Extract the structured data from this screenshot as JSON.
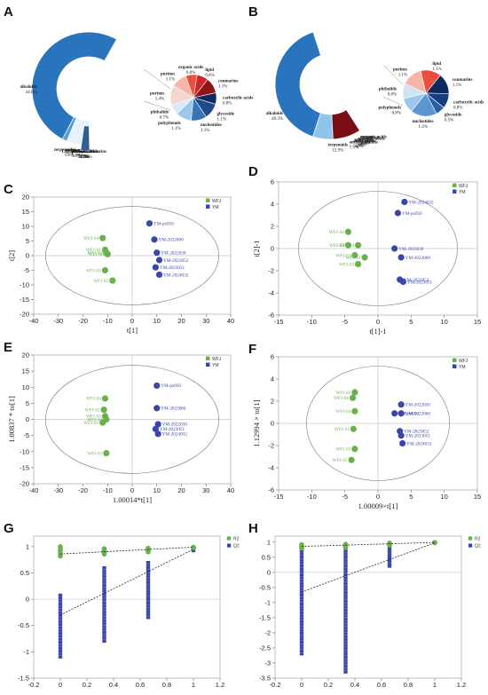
{
  "panels": {
    "A": "A",
    "B": "B",
    "C": "C",
    "D": "D",
    "E": "E",
    "F": "F",
    "G": "G",
    "H": "H"
  },
  "colors": {
    "wfj": "#6ab04c",
    "ym": "#3a47a8"
  },
  "chart_data": [
    {
      "panel": "A",
      "type": "pie",
      "outer_slices": [
        {
          "label": "alkaloids",
          "value": 44.0,
          "pct": "44.0%",
          "color": "#2a73bd"
        },
        {
          "label": "amino acids",
          "value": 5.3,
          "pct": "5.3%",
          "color": "#6aaedb"
        },
        {
          "label": "terpenoids",
          "value": 6.0,
          "pct": "6.0%",
          "color": "#5b9ccf"
        },
        {
          "label": "Lignans and coumarins",
          "value": 2.2,
          "pct": "2.2%",
          "color": "#4f8ec6"
        },
        {
          "label": "flavonoids",
          "value": 2.7,
          "pct": "2.7%",
          "color": "#1f5f9e"
        },
        {
          "label": "steroids",
          "value": 1.0,
          "pct": "1.0%",
          "color": "#0d3f74"
        },
        {
          "label": "phenolic acids",
          "value": 1.9,
          "pct": "1.9%",
          "color": "#79bde6"
        },
        {
          "label": "lipids",
          "value": 2.2,
          "pct": "2.2%",
          "color": "#a4d3f0"
        },
        {
          "label": "fatty acids",
          "value": 3.0,
          "pct": "3.0%",
          "color": "#c6e4f6"
        },
        {
          "label": "others",
          "value": 5.0,
          "pct": "5.0%",
          "color": "#e6f3fb"
        },
        {
          "label": "phenolic acids",
          "value": 1.9,
          "pct": "1.9%",
          "color": "#2d5f96"
        }
      ],
      "inner_slices": [
        {
          "label": "purines",
          "value": 1.1,
          "pct": "1.1%",
          "color": "#f7b4a7"
        },
        {
          "label": "organic acids",
          "value": 0.8,
          "pct": "0.8%",
          "color": "#e8503d"
        },
        {
          "label": "lipid",
          "value": 0.8,
          "pct": "0.8%",
          "color": "#c92a25"
        },
        {
          "label": "coumarins",
          "value": 1.1,
          "pct": "1.1%",
          "color": "#8f1519"
        },
        {
          "label": "carboxylic acids",
          "value": 0.8,
          "pct": "0.8%",
          "color": "#0e2a5c"
        },
        {
          "label": "glycoside",
          "value": 1.1,
          "pct": "1.1%",
          "color": "#1d4a8c"
        },
        {
          "label": "nucleotides",
          "value": 1.1,
          "pct": "1.1%",
          "color": "#3a73b8"
        },
        {
          "label": "polyphenols",
          "value": 1.1,
          "pct": "1.1%",
          "color": "#9cc7e8"
        },
        {
          "label": "phthalide",
          "value": 0.7,
          "pct": "0.7%",
          "color": "#dbe9f6"
        },
        {
          "label": "purines",
          "value": 1.4,
          "pct": "1.4%",
          "color": "#f4d6cf"
        }
      ]
    },
    {
      "panel": "B",
      "type": "pie",
      "outer_slices": [
        {
          "label": "alkaloids",
          "value": 49.3,
          "pct": "49.3%",
          "color": "#2a73bd"
        },
        {
          "label": "amino acids",
          "value": 5.4,
          "pct": "5.4%",
          "color": "#6aaedb"
        },
        {
          "label": "terpenoids",
          "value": 12.9,
          "pct": "12.9%",
          "color": "#8fc5ea"
        },
        {
          "label": "sugars",
          "value": 1.4,
          "pct": "1.4%",
          "color": "#c9e4f6"
        },
        {
          "label": "organic acids",
          "value": 1.1,
          "pct": "1.1%",
          "color": "#f9d6cc"
        },
        {
          "label": "phenolic acids",
          "value": 3.0,
          "pct": "3.0%",
          "color": "#f6b7a8"
        },
        {
          "label": "flavonoids",
          "value": 1.9,
          "pct": "1.9%",
          "color": "#ef8e7a"
        },
        {
          "label": "steroids",
          "value": 3.8,
          "pct": "3.8%",
          "color": "#e04a3b"
        },
        {
          "label": "fatty acids",
          "value": 4.8,
          "pct": "4.8%",
          "color": "#b31f22"
        },
        {
          "label": "anthocyanidins",
          "value": 7.5,
          "pct": "7.5%",
          "color": "#7a0e14"
        }
      ],
      "inner_slices": [
        {
          "label": "lipid",
          "value": 1.1,
          "pct": "1.1%",
          "color": "#e8503d"
        },
        {
          "label": "coumarins",
          "value": 1.1,
          "pct": "1.1%",
          "color": "#0e2a5c"
        },
        {
          "label": "carboxylic acids",
          "value": 0.8,
          "pct": "0.8%",
          "color": "#163f7e"
        },
        {
          "label": "glycoside",
          "value": 0.5,
          "pct": "0.5%",
          "color": "#2660a6"
        },
        {
          "label": "nucleotides",
          "value": 1.4,
          "pct": "1.4%",
          "color": "#5a96cf"
        },
        {
          "label": "polyphenols",
          "value": 0.8,
          "pct": "0.8%",
          "color": "#9cc7e8"
        },
        {
          "label": "phthalide",
          "value": 0.8,
          "pct": "0.8%",
          "color": "#cfe3f3"
        },
        {
          "label": "purines",
          "value": 1.1,
          "pct": "1.1%",
          "color": "#f7b4a7"
        }
      ]
    },
    {
      "panel": "C",
      "type": "scatter",
      "xlabel": "t[1]",
      "ylabel": "t[2]",
      "xlim": [
        -40,
        40
      ],
      "ylim": [
        -20,
        20
      ],
      "xticks": [
        -40,
        -30,
        -20,
        -10,
        0,
        10,
        20,
        30,
        40
      ],
      "yticks": [
        -20,
        -15,
        -10,
        -5,
        0,
        5,
        10,
        15,
        20
      ],
      "legend": [
        "WFJ",
        "YM"
      ],
      "points": [
        {
          "label": "WFJ-S4",
          "x": -12,
          "y": 6,
          "g": 0
        },
        {
          "label": "WFJ-S1",
          "x": -11,
          "y": 2,
          "g": 0
        },
        {
          "label": "WFJ-S2",
          "x": -10.5,
          "y": 1,
          "g": 0
        },
        {
          "label": "WFJ-S6",
          "x": -10,
          "y": 0.5,
          "g": 0
        },
        {
          "label": "WFJ-S3",
          "x": -11,
          "y": -5,
          "g": 0
        },
        {
          "label": "WFJ-S5",
          "x": -8,
          "y": -8.5,
          "g": 0
        },
        {
          "label": "YM-pz050",
          "x": 7,
          "y": 11,
          "g": 1
        },
        {
          "label": "YM-2022060",
          "x": 9,
          "y": 5.5,
          "g": 1
        },
        {
          "label": "YM-2022030",
          "x": 10,
          "y": 1,
          "g": 1
        },
        {
          "label": "YM-2023052",
          "x": 11,
          "y": -1.5,
          "g": 1
        },
        {
          "label": "YM-2023051",
          "x": 9.5,
          "y": -4,
          "g": 1
        },
        {
          "label": "YM-2024032",
          "x": 11,
          "y": -6.5,
          "g": 1
        }
      ]
    },
    {
      "panel": "D",
      "type": "scatter",
      "xlabel": "t[1]-1",
      "ylabel": "t[2]-1",
      "xlim": [
        -15,
        15
      ],
      "ylim": [
        -6,
        6
      ],
      "xticks": [
        -15,
        -10,
        -5,
        0,
        5,
        10,
        15
      ],
      "yticks": [
        -6,
        -4,
        -2,
        0,
        2,
        4,
        6
      ],
      "legend": [
        "WFJ",
        "YM"
      ],
      "points": [
        {
          "label": "WFJ-S6",
          "x": -4.5,
          "y": 1.5,
          "g": 0
        },
        {
          "label": "WFJ-S2",
          "x": -4.5,
          "y": 0.3,
          "g": 0
        },
        {
          "label": "WFJ-S4",
          "x": -3,
          "y": 0.3,
          "g": 0
        },
        {
          "label": "WFJ-S3",
          "x": -3.5,
          "y": -0.6,
          "g": 0
        },
        {
          "label": "WFJ-S1",
          "x": -2,
          "y": -0.8,
          "g": 0
        },
        {
          "label": "WFJ-S5",
          "x": -3,
          "y": -1.4,
          "g": 0
        },
        {
          "label": "YM-2024032",
          "x": 4,
          "y": 4.2,
          "g": 1
        },
        {
          "label": "YM-pz050",
          "x": 3,
          "y": 3.2,
          "g": 1
        },
        {
          "label": "YM-2022030",
          "x": 2.5,
          "y": 0,
          "g": 1
        },
        {
          "label": "YM-2022060",
          "x": 3.5,
          "y": -0.8,
          "g": 1
        },
        {
          "label": "YM-2023052",
          "x": 3.3,
          "y": -2.8,
          "g": 1
        },
        {
          "label": "YM-2023051",
          "x": 3.8,
          "y": -3,
          "g": 1
        }
      ]
    },
    {
      "panel": "E",
      "type": "scatter",
      "xlabel": "1.00014*t[1]",
      "ylabel": "1.00837 * to[1]",
      "xlim": [
        -40,
        40
      ],
      "ylim": [
        -20,
        20
      ],
      "xticks": [
        -40,
        -30,
        -20,
        -10,
        0,
        10,
        20,
        30,
        40
      ],
      "yticks": [
        -20,
        -15,
        -10,
        -5,
        0,
        5,
        10,
        15,
        20
      ],
      "legend": [
        "WFJ",
        "YM"
      ],
      "points": [
        {
          "label": "WFJ-S4",
          "x": -11,
          "y": 6.5,
          "g": 0
        },
        {
          "label": "WFJ-S2",
          "x": -11.5,
          "y": 3,
          "g": 0
        },
        {
          "label": "WFJ-S3",
          "x": -11,
          "y": 1,
          "g": 0
        },
        {
          "label": "WFJ-S6",
          "x": -10.5,
          "y": 0,
          "g": 0
        },
        {
          "label": "WFJ-S1",
          "x": -12,
          "y": -1,
          "g": 0
        },
        {
          "label": "WFJ-S5",
          "x": -10.5,
          "y": -10.5,
          "g": 0
        },
        {
          "label": "YM-pz050",
          "x": 10,
          "y": 10.5,
          "g": 1
        },
        {
          "label": "YM-2022060",
          "x": 10,
          "y": 3.5,
          "g": 1
        },
        {
          "label": "YM-2022030",
          "x": 10.5,
          "y": -1.5,
          "g": 1
        },
        {
          "label": "YM-2023051",
          "x": 9.5,
          "y": -3,
          "g": 1
        },
        {
          "label": "YM-2024032",
          "x": 10.5,
          "y": -4.5,
          "g": 1
        }
      ]
    },
    {
      "panel": "F",
      "type": "scatter",
      "xlabel": "1.00009×t[1]",
      "ylabel": "1.12994 × to[1]",
      "xlim": [
        -15,
        15
      ],
      "ylim": [
        -6,
        6
      ],
      "xticks": [
        -15,
        -10,
        -5,
        0,
        5,
        10,
        15
      ],
      "yticks": [
        -6,
        -4,
        -2,
        0,
        2,
        4,
        6
      ],
      "legend": [
        "WFJ",
        "YM"
      ],
      "points": [
        {
          "label": "WFJ-S2",
          "x": -3.5,
          "y": 2.8,
          "g": 0
        },
        {
          "label": "WFJ-S6",
          "x": -3.8,
          "y": 2.3,
          "g": 0
        },
        {
          "label": "WFJ-S4",
          "x": -3.5,
          "y": 1.1,
          "g": 0
        },
        {
          "label": "WFJ-S1",
          "x": -3.7,
          "y": -0.5,
          "g": 0
        },
        {
          "label": "WFJ-S3",
          "x": -3.5,
          "y": -2.3,
          "g": 0
        },
        {
          "label": "WFJ-S5",
          "x": -4,
          "y": -3.3,
          "g": 0
        },
        {
          "label": "YM-2022030",
          "x": 3.5,
          "y": 1.7,
          "g": 1
        },
        {
          "label": "YM-pz050",
          "x": 2.5,
          "y": 0.9,
          "g": 1
        },
        {
          "label": "YM-2022060",
          "x": 3.5,
          "y": 0.9,
          "g": 1
        },
        {
          "label": "YM-2023052",
          "x": 3.3,
          "y": -0.7,
          "g": 1
        },
        {
          "label": "YM-2023051",
          "x": 3.5,
          "y": -1.1,
          "g": 1
        },
        {
          "label": "YM-2024032",
          "x": 3.7,
          "y": -1.8,
          "g": 1
        }
      ]
    },
    {
      "panel": "G",
      "type": "scatter",
      "xlim": [
        -0.2,
        1.2
      ],
      "ylim": [
        -1.5,
        1.2
      ],
      "xticks": [
        -0.2,
        0,
        0.2,
        0.4,
        0.6,
        0.8,
        1,
        1.2
      ],
      "xticklabels": [
        "-0.2",
        "0",
        "0.2",
        "0.4",
        "0.6",
        "0.8",
        "1",
        "1.2"
      ],
      "yticks": [
        -1.5,
        -1,
        -0.5,
        0,
        0.5,
        1
      ],
      "yticklabels": [
        "-1.5",
        "-1",
        "-0.5",
        "0",
        "0.5",
        "1"
      ],
      "legend": [
        "R2",
        "Q2"
      ],
      "r2_columns": [
        {
          "x": 0,
          "ymin": 0.82,
          "ymax": 1.0
        },
        {
          "x": 0.33,
          "ymin": 0.86,
          "ymax": 0.96
        },
        {
          "x": 0.66,
          "ymin": 0.9,
          "ymax": 0.97
        },
        {
          "x": 1,
          "ymin": 0.97,
          "ymax": 0.99
        }
      ],
      "q2_columns": [
        {
          "x": 0,
          "ymin": -1.1,
          "ymax": 0.08
        },
        {
          "x": 0.33,
          "ymin": -0.8,
          "ymax": 0.6
        },
        {
          "x": 0.66,
          "ymin": -0.35,
          "ymax": 0.7
        },
        {
          "x": 1,
          "ymin": 0.92,
          "ymax": 0.95
        }
      ],
      "r2_line": [
        [
          0,
          0.86
        ],
        [
          1,
          0.99
        ]
      ],
      "q2_line": [
        [
          0,
          -0.3
        ],
        [
          1,
          0.95
        ]
      ]
    },
    {
      "panel": "H",
      "type": "scatter",
      "xlim": [
        -0.2,
        1.2
      ],
      "ylim": [
        -3.5,
        1.2
      ],
      "xticks": [
        -0.2,
        0,
        0.2,
        0.4,
        0.6,
        0.8,
        1,
        1.2
      ],
      "xticklabels": [
        "-0.2",
        "0",
        "0.2",
        "0.4",
        "0.6",
        "0.8",
        "1",
        "1.2"
      ],
      "yticks": [
        -3.5,
        -3,
        -2.5,
        -2,
        -1.5,
        -1,
        -0.5,
        0,
        0.5,
        1
      ],
      "yticklabels": [
        "-3.5",
        "-3",
        "-2.5",
        "-2",
        "-1.5",
        "-1",
        "-0.5",
        "0",
        "0.5",
        "1"
      ],
      "legend": [
        "R2",
        "Q2"
      ],
      "r2_columns": [
        {
          "x": 0,
          "ymin": 0.8,
          "ymax": 0.92
        },
        {
          "x": 0.33,
          "ymin": 0.82,
          "ymax": 0.93
        },
        {
          "x": 0.66,
          "ymin": 0.9,
          "ymax": 0.97
        },
        {
          "x": 1,
          "ymin": 0.98,
          "ymax": 0.99
        }
      ],
      "q2_columns": [
        {
          "x": 0,
          "ymin": -2.7,
          "ymax": 0.8
        },
        {
          "x": 0.33,
          "ymin": -3.3,
          "ymax": 0.8
        },
        {
          "x": 0.66,
          "ymin": 0.2,
          "ymax": 0.85
        },
        {
          "x": 1,
          "ymin": 0.97,
          "ymax": 0.98
        }
      ],
      "r2_line": [
        [
          0,
          0.86
        ],
        [
          1,
          0.99
        ]
      ],
      "q2_line": [
        [
          0,
          -0.65
        ],
        [
          1,
          0.98
        ]
      ]
    }
  ]
}
